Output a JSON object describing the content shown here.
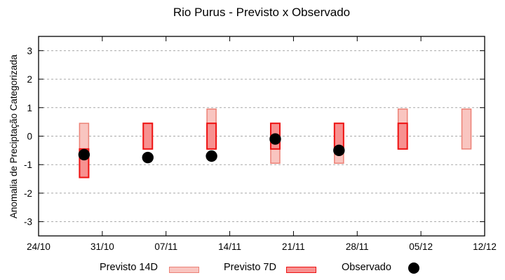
{
  "chart_data": {
    "type": "bar",
    "title": "Rio Purus - Previsto x Observado",
    "ylabel": "Anomalia de Preciptação Categorizada",
    "xlabel": "",
    "ylim": [
      -3.5,
      3.5
    ],
    "yticks": [
      3,
      2,
      1,
      0,
      -1,
      -2,
      -3
    ],
    "xticks": [
      {
        "label": "24/10",
        "day": 0
      },
      {
        "label": "31/10",
        "day": 7
      },
      {
        "label": "07/11",
        "day": 14
      },
      {
        "label": "14/11",
        "day": 21
      },
      {
        "label": "21/11",
        "day": 28
      },
      {
        "label": "28/11",
        "day": 35
      },
      {
        "label": "05/12",
        "day": 42
      },
      {
        "label": "12/12",
        "day": 49
      }
    ],
    "grid": "horizontal-dashed",
    "grid_color": "#a8a8a8",
    "axis_color": "#000000",
    "legend_position": "bottom-outside",
    "series": [
      {
        "name": "Previsto 14D",
        "type": "range-bar",
        "fill": "#f9c5c0",
        "border": "#ec8176",
        "points": [
          {
            "date": "29/10",
            "day": 5,
            "low": -0.95,
            "high": 0.45
          },
          {
            "date": "05/11",
            "day": 12,
            "low": -0.45,
            "high": 0.45
          },
          {
            "date": "12/11",
            "day": 19,
            "low": -0.45,
            "high": 0.95
          },
          {
            "date": "19/11",
            "day": 26,
            "low": -0.95,
            "high": 0.45
          },
          {
            "date": "26/11",
            "day": 33,
            "low": -0.95,
            "high": 0.45
          },
          {
            "date": "03/12",
            "day": 40,
            "low": -0.45,
            "high": 0.95
          },
          {
            "date": "10/12",
            "day": 47,
            "low": -0.45,
            "high": 0.95
          }
        ]
      },
      {
        "name": "Previsto 7D",
        "type": "range-bar",
        "fill": "#f79190",
        "border": "#ee1111",
        "points": [
          {
            "date": "29/10",
            "day": 5,
            "low": -1.45,
            "high": -0.45
          },
          {
            "date": "05/11",
            "day": 12,
            "low": -0.45,
            "high": 0.45
          },
          {
            "date": "12/11",
            "day": 19,
            "low": -0.45,
            "high": 0.45
          },
          {
            "date": "19/11",
            "day": 26,
            "low": -0.45,
            "high": 0.45
          },
          {
            "date": "26/11",
            "day": 33,
            "low": -0.45,
            "high": 0.45
          },
          {
            "date": "03/12",
            "day": 40,
            "low": -0.45,
            "high": 0.45
          }
        ]
      },
      {
        "name": "Observado",
        "type": "scatter",
        "fill": "#000000",
        "points": [
          {
            "date": "29/10",
            "day": 5,
            "value": -0.65
          },
          {
            "date": "05/11",
            "day": 12,
            "value": -0.75
          },
          {
            "date": "12/11",
            "day": 19,
            "value": -0.7
          },
          {
            "date": "19/11",
            "day": 26,
            "value": -0.1
          },
          {
            "date": "26/11",
            "day": 33,
            "value": -0.5
          }
        ]
      }
    ]
  }
}
